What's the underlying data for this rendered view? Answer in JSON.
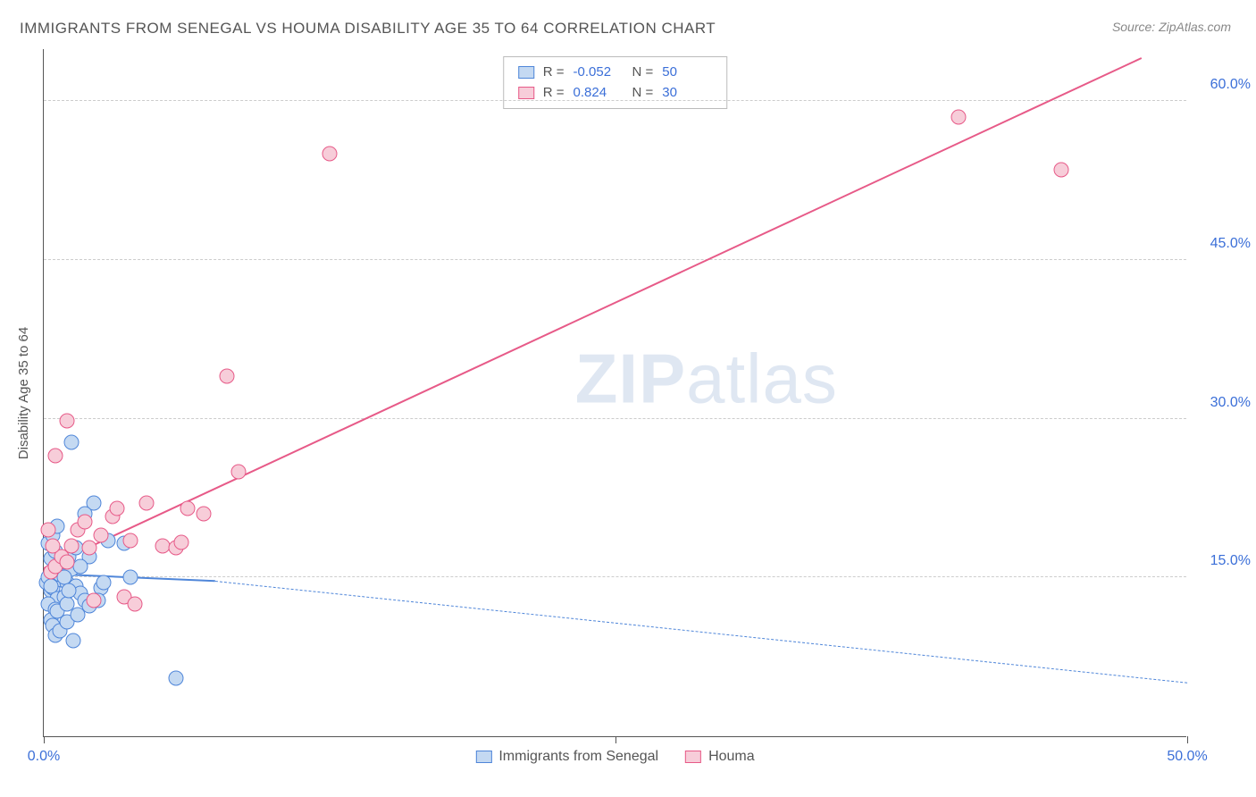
{
  "title": "IMMIGRANTS FROM SENEGAL VS HOUMA DISABILITY AGE 35 TO 64 CORRELATION CHART",
  "source": "Source: ZipAtlas.com",
  "y_axis_title": "Disability Age 35 to 64",
  "watermark": {
    "zip": "ZIP",
    "atlas": "atlas"
  },
  "chart": {
    "type": "scatter",
    "background_color": "#ffffff",
    "grid_color": "#cccccc",
    "axis_color": "#555555",
    "text_color": "#555555",
    "value_color": "#3b6fd8",
    "xlim": [
      0,
      50
    ],
    "ylim": [
      0,
      65
    ],
    "x_ticks": [
      0,
      25,
      50
    ],
    "x_tick_labels": [
      "0.0%",
      "",
      "50.0%"
    ],
    "y_ticks": [
      15,
      30,
      45,
      60
    ],
    "y_tick_labels": [
      "15.0%",
      "30.0%",
      "45.0%",
      "60.0%"
    ],
    "point_radius": 8.5,
    "series": [
      {
        "id": "senegal",
        "label": "Immigrants from Senegal",
        "fill": "#c4d9f2",
        "stroke": "#4f86d9",
        "r_value": "-0.052",
        "n_value": "50",
        "trend": {
          "solid": {
            "x1": 0,
            "y1": 15.3,
            "x2": 7.5,
            "y2": 14.6,
            "width": 2.5
          },
          "dashed": {
            "x1": 7.5,
            "y1": 14.6,
            "x2": 50,
            "y2": 5.0,
            "width": 1.2
          }
        },
        "points": [
          [
            0.1,
            14.5
          ],
          [
            0.2,
            15.0
          ],
          [
            0.3,
            13.8
          ],
          [
            0.4,
            15.5
          ],
          [
            0.5,
            16.2
          ],
          [
            0.4,
            14.0
          ],
          [
            0.6,
            13.0
          ],
          [
            0.8,
            14.8
          ],
          [
            0.2,
            12.5
          ],
          [
            0.3,
            16.8
          ],
          [
            0.5,
            12.0
          ],
          [
            0.7,
            15.3
          ],
          [
            0.3,
            11.0
          ],
          [
            0.4,
            10.5
          ],
          [
            0.6,
            11.8
          ],
          [
            0.9,
            13.2
          ],
          [
            1.0,
            14.5
          ],
          [
            1.2,
            15.8
          ],
          [
            1.4,
            14.2
          ],
          [
            1.6,
            13.5
          ],
          [
            1.8,
            12.8
          ],
          [
            0.5,
            9.5
          ],
          [
            0.7,
            10.0
          ],
          [
            1.0,
            10.8
          ],
          [
            1.3,
            9.0
          ],
          [
            1.5,
            11.5
          ],
          [
            2.0,
            12.3
          ],
          [
            2.5,
            14.0
          ],
          [
            2.8,
            18.5
          ],
          [
            1.1,
            17.0
          ],
          [
            1.4,
            17.8
          ],
          [
            0.2,
            18.2
          ],
          [
            0.4,
            19.0
          ],
          [
            0.6,
            19.8
          ],
          [
            2.2,
            22.0
          ],
          [
            3.5,
            18.2
          ],
          [
            3.8,
            15.0
          ],
          [
            2.0,
            17.0
          ],
          [
            1.8,
            21.0
          ],
          [
            1.2,
            27.8
          ],
          [
            0.5,
            17.5
          ],
          [
            0.8,
            16.5
          ],
          [
            1.0,
            12.5
          ],
          [
            1.6,
            16.0
          ],
          [
            2.4,
            12.8
          ],
          [
            0.3,
            14.2
          ],
          [
            0.9,
            15.0
          ],
          [
            1.1,
            13.8
          ],
          [
            5.8,
            5.5
          ],
          [
            2.6,
            14.5
          ]
        ]
      },
      {
        "id": "houma",
        "label": "Houma",
        "fill": "#f7cdd9",
        "stroke": "#e75a88",
        "r_value": "0.824",
        "n_value": "30",
        "trend": {
          "solid": {
            "x1": 0,
            "y1": 15.8,
            "x2": 48,
            "y2": 64.0,
            "width": 2.5
          }
        },
        "points": [
          [
            0.3,
            15.5
          ],
          [
            0.5,
            16.0
          ],
          [
            0.8,
            17.0
          ],
          [
            1.0,
            16.5
          ],
          [
            1.2,
            18.0
          ],
          [
            1.5,
            19.5
          ],
          [
            1.8,
            20.3
          ],
          [
            2.0,
            17.8
          ],
          [
            2.5,
            19.0
          ],
          [
            3.0,
            20.8
          ],
          [
            3.2,
            21.5
          ],
          [
            3.8,
            18.5
          ],
          [
            4.5,
            22.0
          ],
          [
            5.2,
            18.0
          ],
          [
            5.8,
            17.8
          ],
          [
            7.0,
            21.0
          ],
          [
            8.5,
            25.0
          ],
          [
            6.3,
            21.5
          ],
          [
            3.5,
            13.2
          ],
          [
            2.2,
            12.8
          ],
          [
            4.0,
            12.5
          ],
          [
            0.5,
            26.5
          ],
          [
            1.0,
            29.8
          ],
          [
            0.2,
            19.5
          ],
          [
            0.4,
            18.0
          ],
          [
            6.0,
            18.3
          ],
          [
            8.0,
            34.0
          ],
          [
            12.5,
            55.0
          ],
          [
            40.0,
            58.5
          ],
          [
            44.5,
            53.5
          ]
        ]
      }
    ]
  },
  "legend_top": {
    "r_label": "R =",
    "n_label": "N ="
  }
}
